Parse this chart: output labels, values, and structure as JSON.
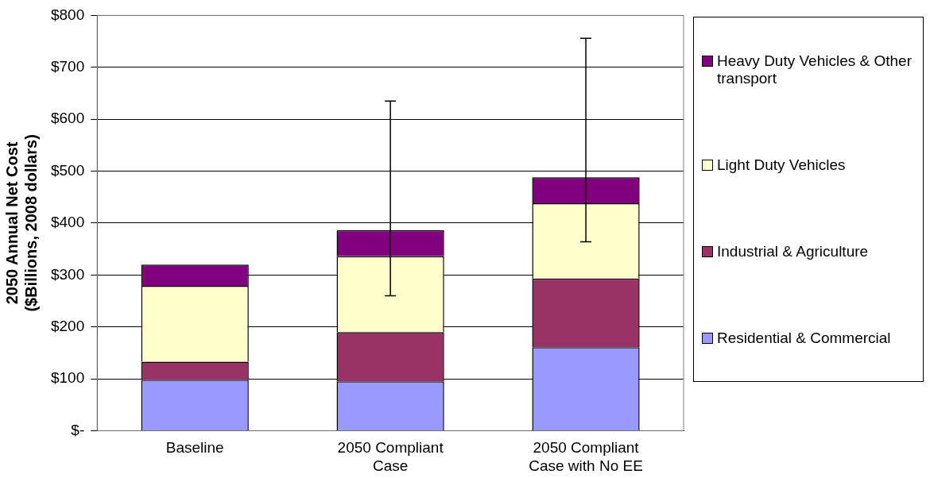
{
  "chart_data": {
    "type": "bar",
    "stacked": true,
    "ylabel": "2050 Annual Net Cost\n($Billions, 2008 dollars)",
    "categories": [
      "Baseline",
      "2050 Compliant Case",
      "2050 Compliant Case with No EE"
    ],
    "series": [
      {
        "name": "Residential & Commercial",
        "color": "#9999ff",
        "values": [
          98,
          95,
          161
        ]
      },
      {
        "name": "Industrial & Agriculture",
        "color": "#993366",
        "values": [
          35,
          95,
          132
        ]
      },
      {
        "name": "Light Duty Vehicles",
        "color": "#ffffcc",
        "values": [
          146,
          146,
          145
        ]
      },
      {
        "name": "Heavy Duty Vehicles & Other transport",
        "color": "#800080",
        "values": [
          41,
          50,
          50
        ],
        "errors": [
          null,
          [
            260,
            635
          ],
          [
            364,
            756
          ]
        ]
      }
    ],
    "ylim": [
      0,
      800
    ],
    "yticks": [
      {
        "value": 0,
        "label": "$-"
      },
      {
        "value": 100,
        "label": "$100"
      },
      {
        "value": 200,
        "label": "$200"
      },
      {
        "value": 300,
        "label": "$300"
      },
      {
        "value": 400,
        "label": "$400"
      },
      {
        "value": 500,
        "label": "$500"
      },
      {
        "value": 600,
        "label": "$600"
      },
      {
        "value": 700,
        "label": "$700"
      },
      {
        "value": 800,
        "label": "$800"
      }
    ],
    "grid": "y",
    "legend": "right"
  }
}
